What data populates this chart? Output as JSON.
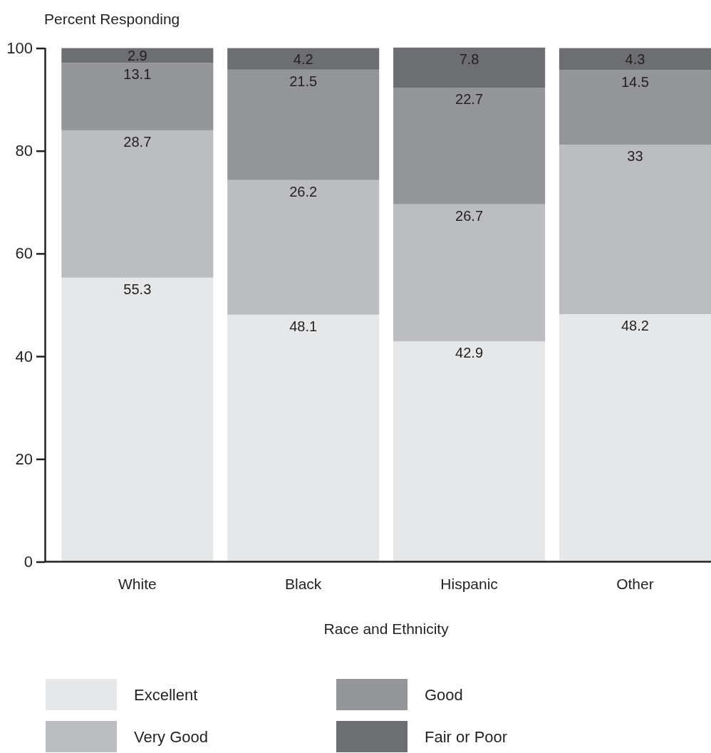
{
  "chart_data": {
    "type": "bar",
    "stacked": true,
    "ylabel": "Percent Responding",
    "xlabel": "Race and Ethnicity",
    "categories": [
      "White",
      "Black",
      "Hispanic",
      "Other"
    ],
    "series": [
      {
        "name": "Excellent",
        "color": "#e6e7e8",
        "values": [
          55.3,
          48.1,
          42.9,
          48.2
        ]
      },
      {
        "name": "Very Good",
        "color": "#bcbdc0",
        "values": [
          28.7,
          26.2,
          26.7,
          33
        ]
      },
      {
        "name": "Good",
        "color": "#939598",
        "values": [
          13.1,
          21.5,
          22.7,
          14.5
        ]
      },
      {
        "name": "Fair or Poor",
        "color": "#6d6e71",
        "values": [
          2.9,
          4.2,
          7.8,
          4.3
        ]
      }
    ],
    "ylim": [
      0,
      100.1
    ],
    "yticks": [
      0,
      20,
      40,
      60,
      80,
      100
    ],
    "data_labels": true,
    "legend": "bottom"
  }
}
